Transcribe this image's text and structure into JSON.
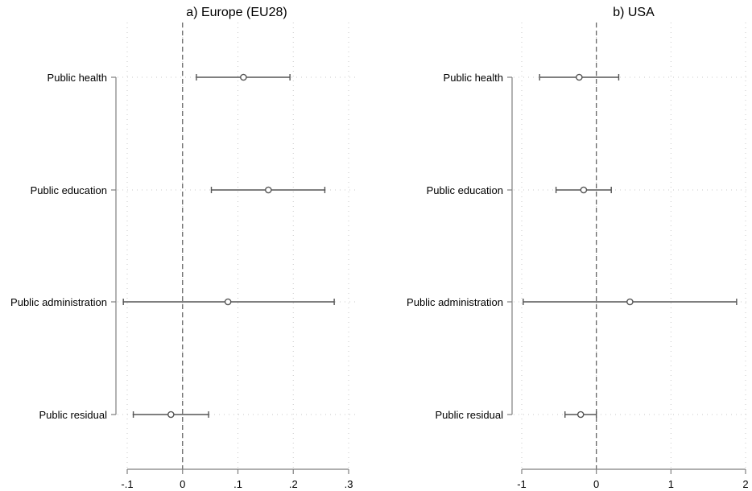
{
  "chart_data": [
    {
      "type": "coefficient_plot",
      "title": "a) Europe (EU28)",
      "categories": [
        "Public health",
        "Public education",
        "Public administration",
        "Public residual"
      ],
      "series": [
        {
          "estimate": [
            0.11,
            0.155,
            0.082,
            -0.021
          ],
          "ci_low": [
            0.025,
            0.052,
            -0.107,
            -0.089
          ],
          "ci_high": [
            0.194,
            0.257,
            0.274,
            0.047
          ]
        }
      ],
      "xlim": [
        -0.1,
        0.3
      ],
      "xticks": [
        -0.1,
        0,
        0.1,
        0.2,
        0.3
      ],
      "xtick_labels": [
        "-.1",
        "0",
        ".1",
        ".2",
        ".3"
      ],
      "reference_line": 0,
      "grid": true
    },
    {
      "type": "coefficient_plot",
      "title": "b) USA",
      "categories": [
        "Public health",
        "Public education",
        "Public administration",
        "Public residual"
      ],
      "series": [
        {
          "estimate": [
            -0.23,
            -0.17,
            0.45,
            -0.21
          ],
          "ci_low": [
            -0.76,
            -0.54,
            -0.98,
            -0.42
          ],
          "ci_high": [
            0.3,
            0.2,
            1.88,
            0.0
          ]
        }
      ],
      "xlim": [
        -1,
        2
      ],
      "xticks": [
        -1,
        0,
        1,
        2
      ],
      "xtick_labels": [
        "-1",
        "0",
        "1",
        "2"
      ],
      "reference_line": 0,
      "grid": true
    }
  ],
  "colors": {
    "marker": "#555555",
    "ci_line": "#555555",
    "axis": "#7f7f7f",
    "grid": "#c8c8c8",
    "reference": "#666666"
  }
}
